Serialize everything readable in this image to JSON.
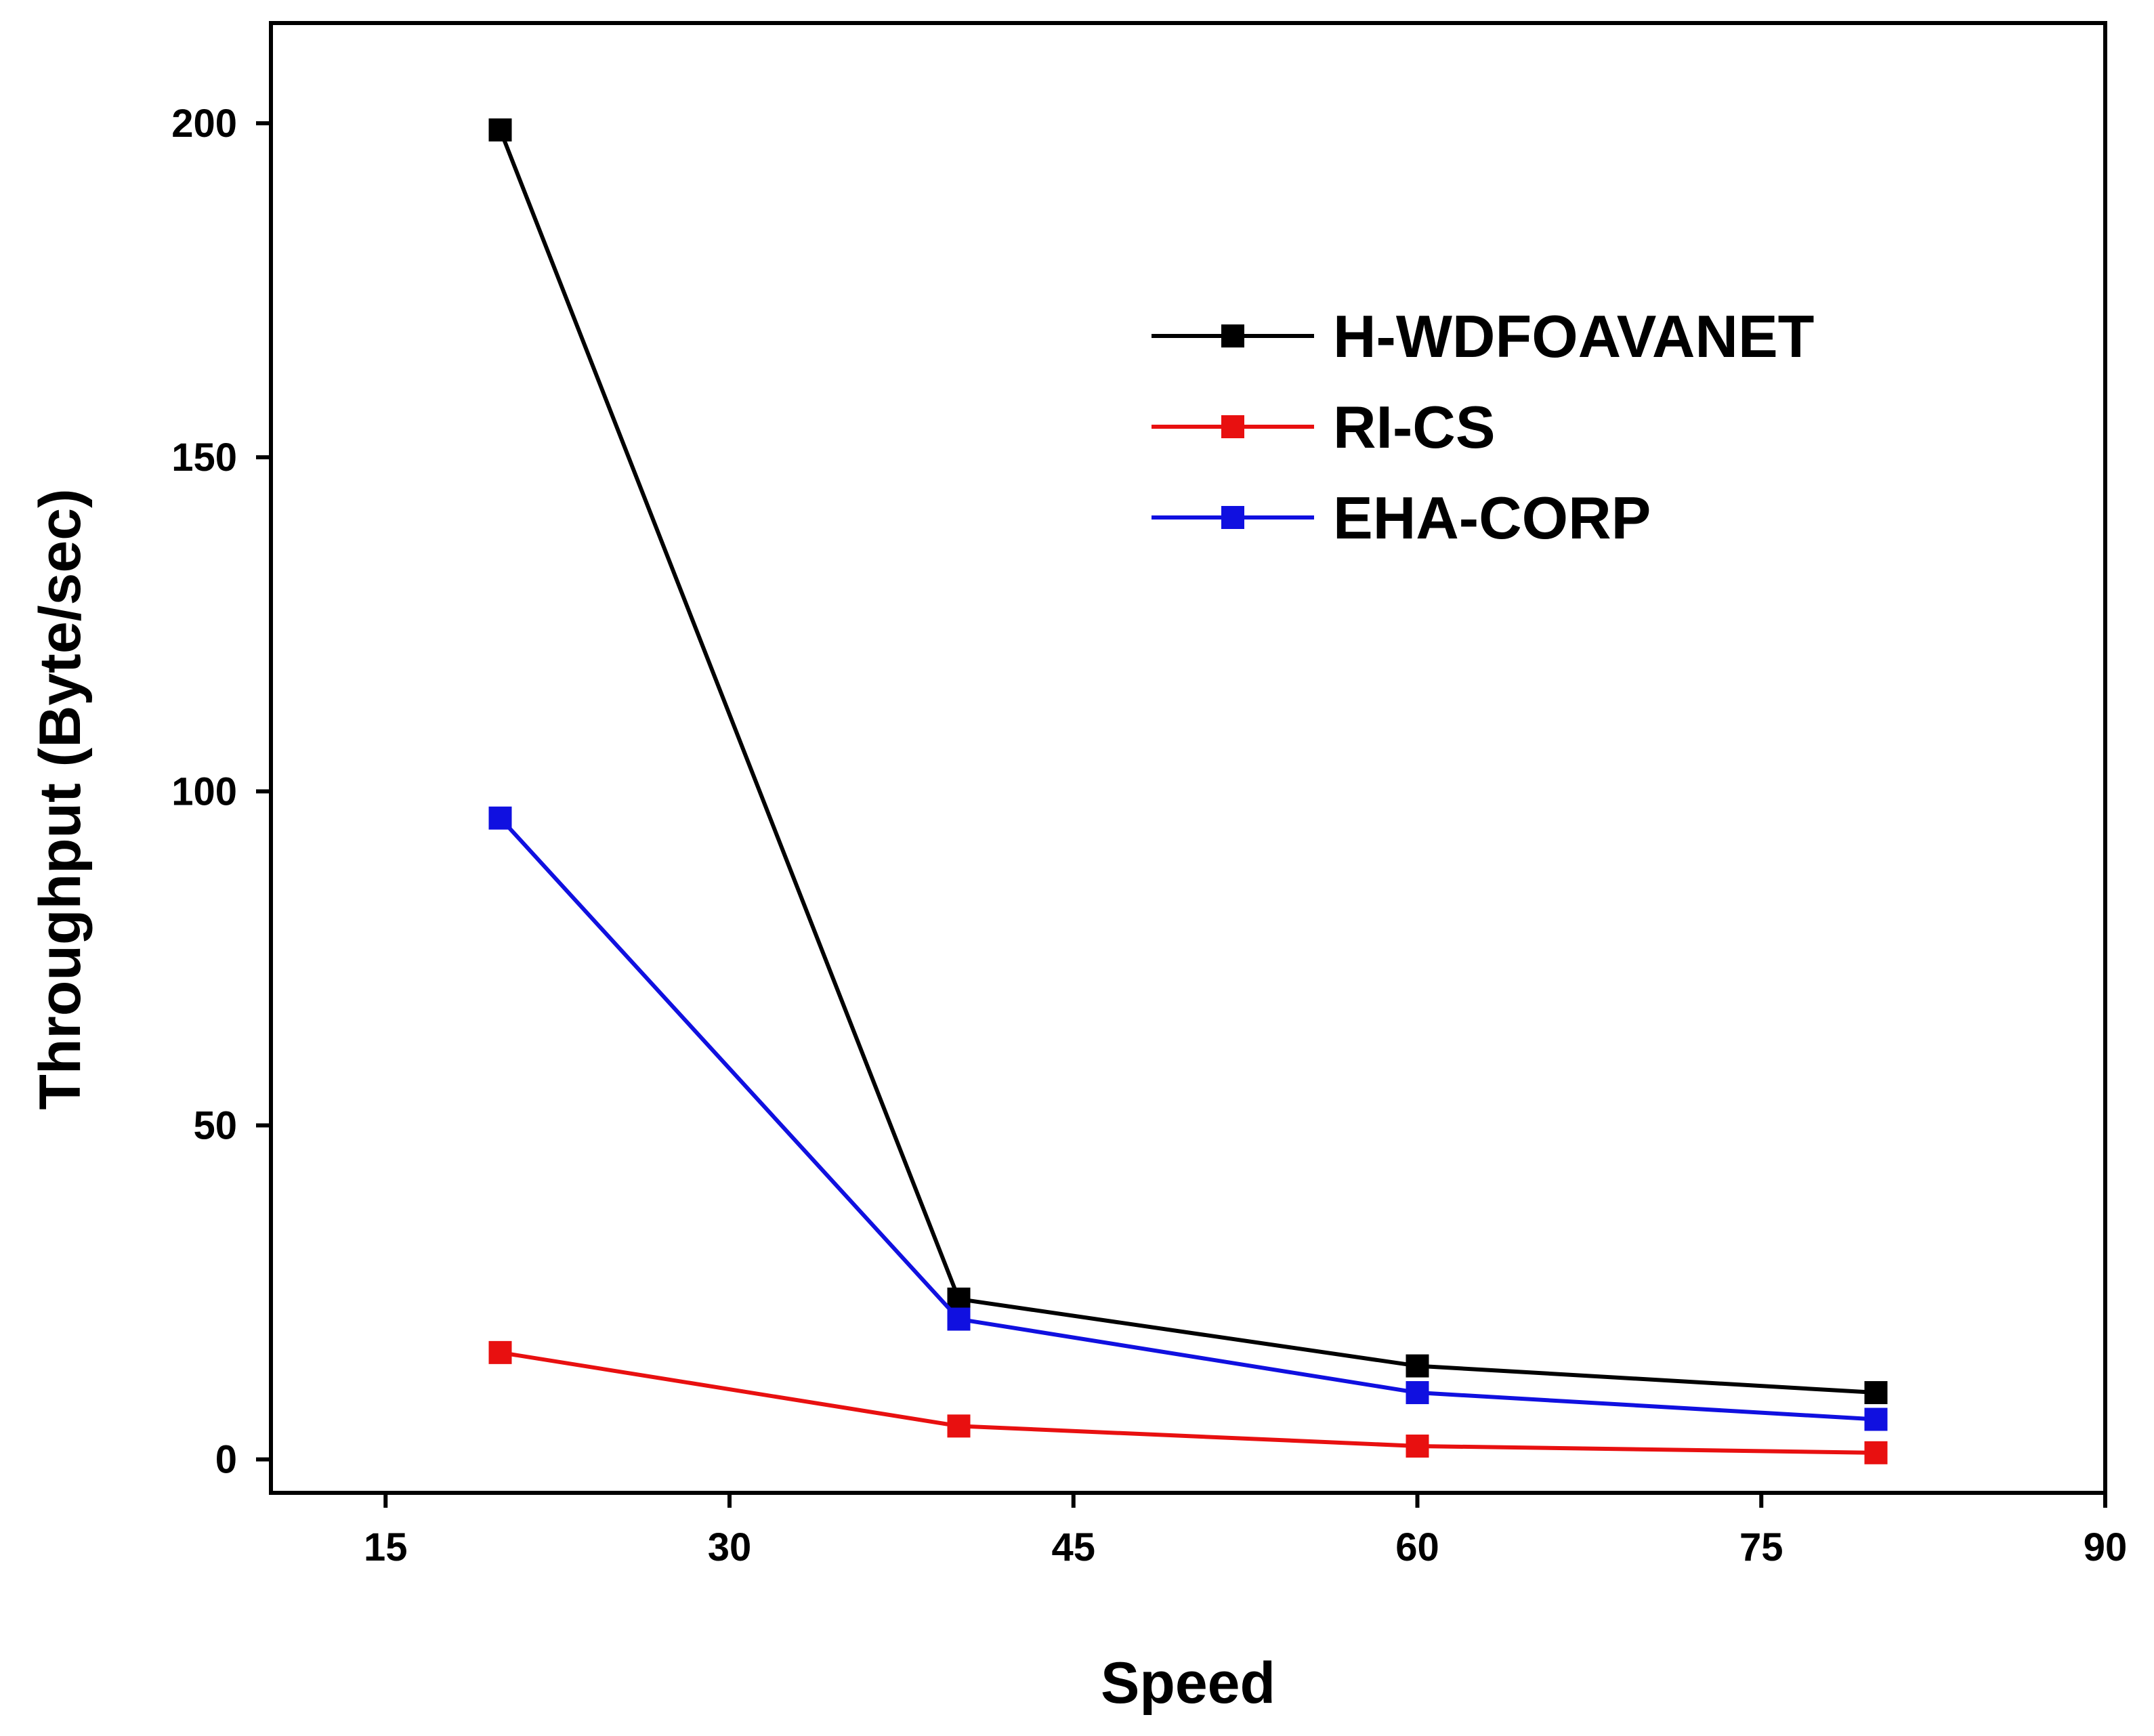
{
  "chart_data": {
    "type": "line",
    "title": "",
    "xlabel": "Speed",
    "ylabel": "Throughput (Byte/sec)",
    "x": [
      20,
      40,
      60,
      80
    ],
    "xlim": [
      10,
      90
    ],
    "ylim": [
      -5,
      215
    ],
    "xticks": [
      15,
      30,
      45,
      60,
      75,
      90
    ],
    "yticks": [
      0,
      50,
      100,
      150,
      200
    ],
    "grid": false,
    "legend_position": "top-right",
    "series": [
      {
        "name": "H-WDFOAVANET",
        "color": "#000000",
        "values": [
          199,
          24,
          14,
          10
        ]
      },
      {
        "name": "RI-CS",
        "color": "#e81010",
        "values": [
          16,
          5,
          2,
          1
        ]
      },
      {
        "name": "EHA-CORP",
        "color": "#1010e0",
        "values": [
          96,
          21,
          10,
          6
        ]
      }
    ]
  }
}
